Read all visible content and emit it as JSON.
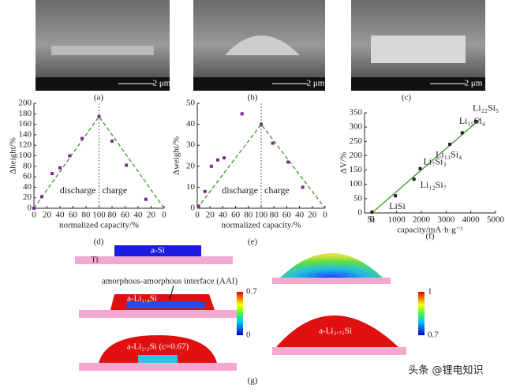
{
  "panel_labels": [
    "(a)",
    "(b)",
    "(c)",
    "(d)",
    "(e)",
    "(f)",
    "(g)"
  ],
  "sem_scale": [
    "2 μm",
    "2 μm",
    "2 μm"
  ],
  "chart_data": [
    {
      "type": "scatter",
      "ylabel": "Δheight/%",
      "xlabel": "normalized capacity/%",
      "annotations": [
        "discharge",
        "charge"
      ],
      "x": [
        0,
        12,
        28,
        40,
        55,
        74,
        100,
        120,
        142,
        172
      ],
      "series": [
        {
          "color": "#7b2a8c",
          "values": [
            0,
            22,
            66,
            77,
            100,
            133,
            175,
            128,
            82,
            17
          ]
        }
      ],
      "trend": {
        "color": "#4a9a3a",
        "x": [
          0,
          100,
          200
        ],
        "values": [
          0,
          175,
          0
        ]
      },
      "xlim": [
        0,
        200
      ],
      "xticks": [
        0,
        20,
        40,
        60,
        80,
        100,
        {
          "value": 120,
          "label": "80"
        },
        {
          "value": 140,
          "label": "60"
        },
        {
          "value": 160,
          "label": "40"
        },
        {
          "value": 180,
          "label": "20"
        },
        {
          "value": 200,
          "label": "0"
        }
      ],
      "ylim": [
        0,
        200
      ],
      "yticks": [
        0,
        20,
        40,
        60,
        80,
        100,
        120,
        140,
        160,
        180,
        200
      ]
    },
    {
      "type": "scatter",
      "ylabel": "Δweight/%",
      "xlabel": "normalized capacity/%",
      "annotations": [
        "discharge",
        "charge"
      ],
      "x": [
        2,
        12,
        22,
        32,
        42,
        70,
        100,
        118,
        142,
        165
      ],
      "series": [
        {
          "color": "#7b2a8c",
          "values": [
            1,
            8,
            20,
            23,
            24,
            45,
            40,
            31,
            22,
            10
          ]
        }
      ],
      "trend": {
        "color": "#4a9a3a",
        "x": [
          0,
          100,
          200
        ],
        "values": [
          0,
          40,
          0
        ]
      },
      "xlim": [
        0,
        200
      ],
      "xticks": [
        0,
        20,
        40,
        60,
        80,
        100,
        {
          "value": 120,
          "label": "80"
        },
        {
          "value": 140,
          "label": "60"
        },
        {
          "value": 160,
          "label": "40"
        },
        {
          "value": 180,
          "label": "20"
        },
        {
          "value": 200,
          "label": "0"
        }
      ],
      "ylim": [
        0,
        50
      ],
      "yticks": [
        0,
        10,
        20,
        30,
        40,
        50
      ]
    },
    {
      "type": "scatter",
      "ylabel": "ΔV/%",
      "xlabel": "capacity/mA·h·g⁻¹",
      "x": [
        0,
        950,
        1700,
        1950,
        3150,
        3650,
        4200
      ],
      "series": [
        {
          "color": "#222222",
          "values": [
            3,
            60,
            118,
            155,
            240,
            280,
            320
          ]
        }
      ],
      "point_labels": [
        "Si",
        "LiSi",
        "Li₁₂Si₇",
        "Li₇Si₃",
        "Li₁₃Si₄",
        "Li₁₅Si₄",
        "Li₂₂Si₅"
      ],
      "trend": {
        "color": "#4a9a3a",
        "x": [
          0,
          4400
        ],
        "values": [
          0,
          330
        ]
      },
      "xlim": [
        -300,
        5000
      ],
      "xticks": [
        0,
        1000,
        2000,
        3000,
        4000,
        5000
      ],
      "ylim": [
        0,
        350
      ],
      "yticks": [
        0,
        50,
        100,
        150,
        200,
        250,
        300,
        350
      ]
    }
  ],
  "simulation": {
    "substrate": "Ti",
    "film": "a-Si",
    "interface": "amorphous-amorphous interface (AAI)",
    "phase1": "a-Li₁.₄Si",
    "phase2": "a-Li₂.₃Si (c=0.67)",
    "phase3": "a-Li₃.₇₅Si",
    "colorbar1": {
      "max": 0.7,
      "min": 0
    },
    "colorbar2": {
      "max": 1,
      "min": 0.7
    }
  },
  "watermark": "头条 @锂电知识"
}
